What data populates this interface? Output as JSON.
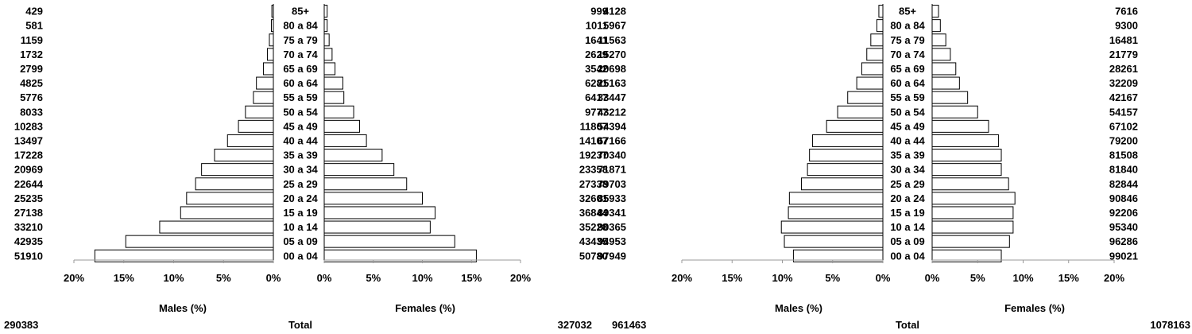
{
  "chart_data": [
    {
      "type": "bar",
      "orientation": "horizontal-pyramid",
      "categories": [
        "85+",
        "80 a 84",
        "75 a 79",
        "70 a 74",
        "65 a 69",
        "60 a 64",
        "55 a 59",
        "50 a 54",
        "45 a 49",
        "40 a 44",
        "35 a 39",
        "30 a 34",
        "25 a 29",
        "20 a 24",
        "15 a 19",
        "10 a 14",
        "05 a 09",
        "00 a 04"
      ],
      "series": [
        {
          "name": "Males (%)",
          "side": "left",
          "values": [
            0.15,
            0.2,
            0.4,
            0.6,
            1.0,
            1.7,
            2.0,
            2.8,
            3.5,
            4.6,
            5.9,
            7.2,
            7.8,
            8.7,
            9.3,
            11.4,
            14.8,
            17.9
          ],
          "counts": [
            "429",
            "581",
            "1159",
            "1732",
            "2799",
            "4825",
            "5776",
            "8033",
            "10283",
            "13497",
            "17228",
            "20969",
            "22644",
            "25235",
            "27138",
            "33210",
            "42935",
            "51910"
          ]
        },
        {
          "name": "Females (%)",
          "side": "right",
          "values": [
            0.3,
            0.3,
            0.5,
            0.8,
            1.1,
            1.9,
            2.0,
            3.0,
            3.6,
            4.3,
            5.9,
            7.1,
            8.4,
            10.0,
            11.3,
            10.8,
            13.3,
            15.5
          ],
          "counts": [
            "999",
            "1011",
            "1641",
            "2629",
            "3542",
            "6281",
            "6417",
            "9777",
            "11807",
            "14107",
            "19237",
            "23358",
            "27338",
            "32601",
            "36844",
            "35228",
            "43435",
            "50780"
          ]
        }
      ],
      "xticks": [
        "20%",
        "15%",
        "10%",
        "5%",
        "0%"
      ],
      "xticks_right": [
        "0%",
        "5%",
        "10%",
        "15%",
        "20%"
      ],
      "xlim": [
        0,
        20
      ],
      "left_total": "290383",
      "right_total": "327032",
      "total_label": "Total",
      "grid": false
    },
    {
      "type": "bar",
      "orientation": "horizontal-pyramid",
      "categories": [
        "85+",
        "80 a 84",
        "75 a 79",
        "70 a 74",
        "65 a 69",
        "60 a 64",
        "55 a 59",
        "50 a 54",
        "45 a 49",
        "40 a 44",
        "35 a 39",
        "30 a 34",
        "25 a 29",
        "20 a 24",
        "15 a 19",
        "10 a 14",
        "05 a 09",
        "00 a 04"
      ],
      "series": [
        {
          "name": "Males (%)",
          "side": "left",
          "values": [
            0.4,
            0.6,
            1.2,
            1.6,
            2.1,
            2.6,
            3.5,
            4.5,
            5.6,
            7.0,
            7.3,
            7.5,
            8.1,
            9.3,
            9.4,
            10.1,
            9.8,
            8.9
          ],
          "counts": [
            "4128",
            "5967",
            "11563",
            "15270",
            "20698",
            "25163",
            "33447",
            "43212",
            "54394",
            "67166",
            "70340",
            "71871",
            "79703",
            "85933",
            "89341",
            "90365",
            "94953",
            "97949"
          ]
        },
        {
          "name": "Females (%)",
          "side": "right",
          "values": [
            0.7,
            0.9,
            1.5,
            2.0,
            2.6,
            3.0,
            3.9,
            5.0,
            6.2,
            7.3,
            7.6,
            7.6,
            8.4,
            9.1,
            8.9,
            8.9,
            8.5,
            7.6
          ],
          "counts": [
            "7616",
            "9300",
            "16481",
            "21779",
            "28261",
            "32209",
            "42167",
            "54157",
            "67102",
            "79200",
            "81508",
            "81840",
            "82844",
            "90846",
            "92206",
            "95340",
            "96286",
            "99021"
          ]
        }
      ],
      "xticks": [
        "20%",
        "15%",
        "10%",
        "5%",
        "0%"
      ],
      "xticks_right": [
        "0%",
        "5%",
        "10%",
        "15%",
        "20%"
      ],
      "xlim": [
        0,
        20
      ],
      "left_total": "961463",
      "right_total": "1078163",
      "total_label": "Total",
      "grid": false
    }
  ]
}
